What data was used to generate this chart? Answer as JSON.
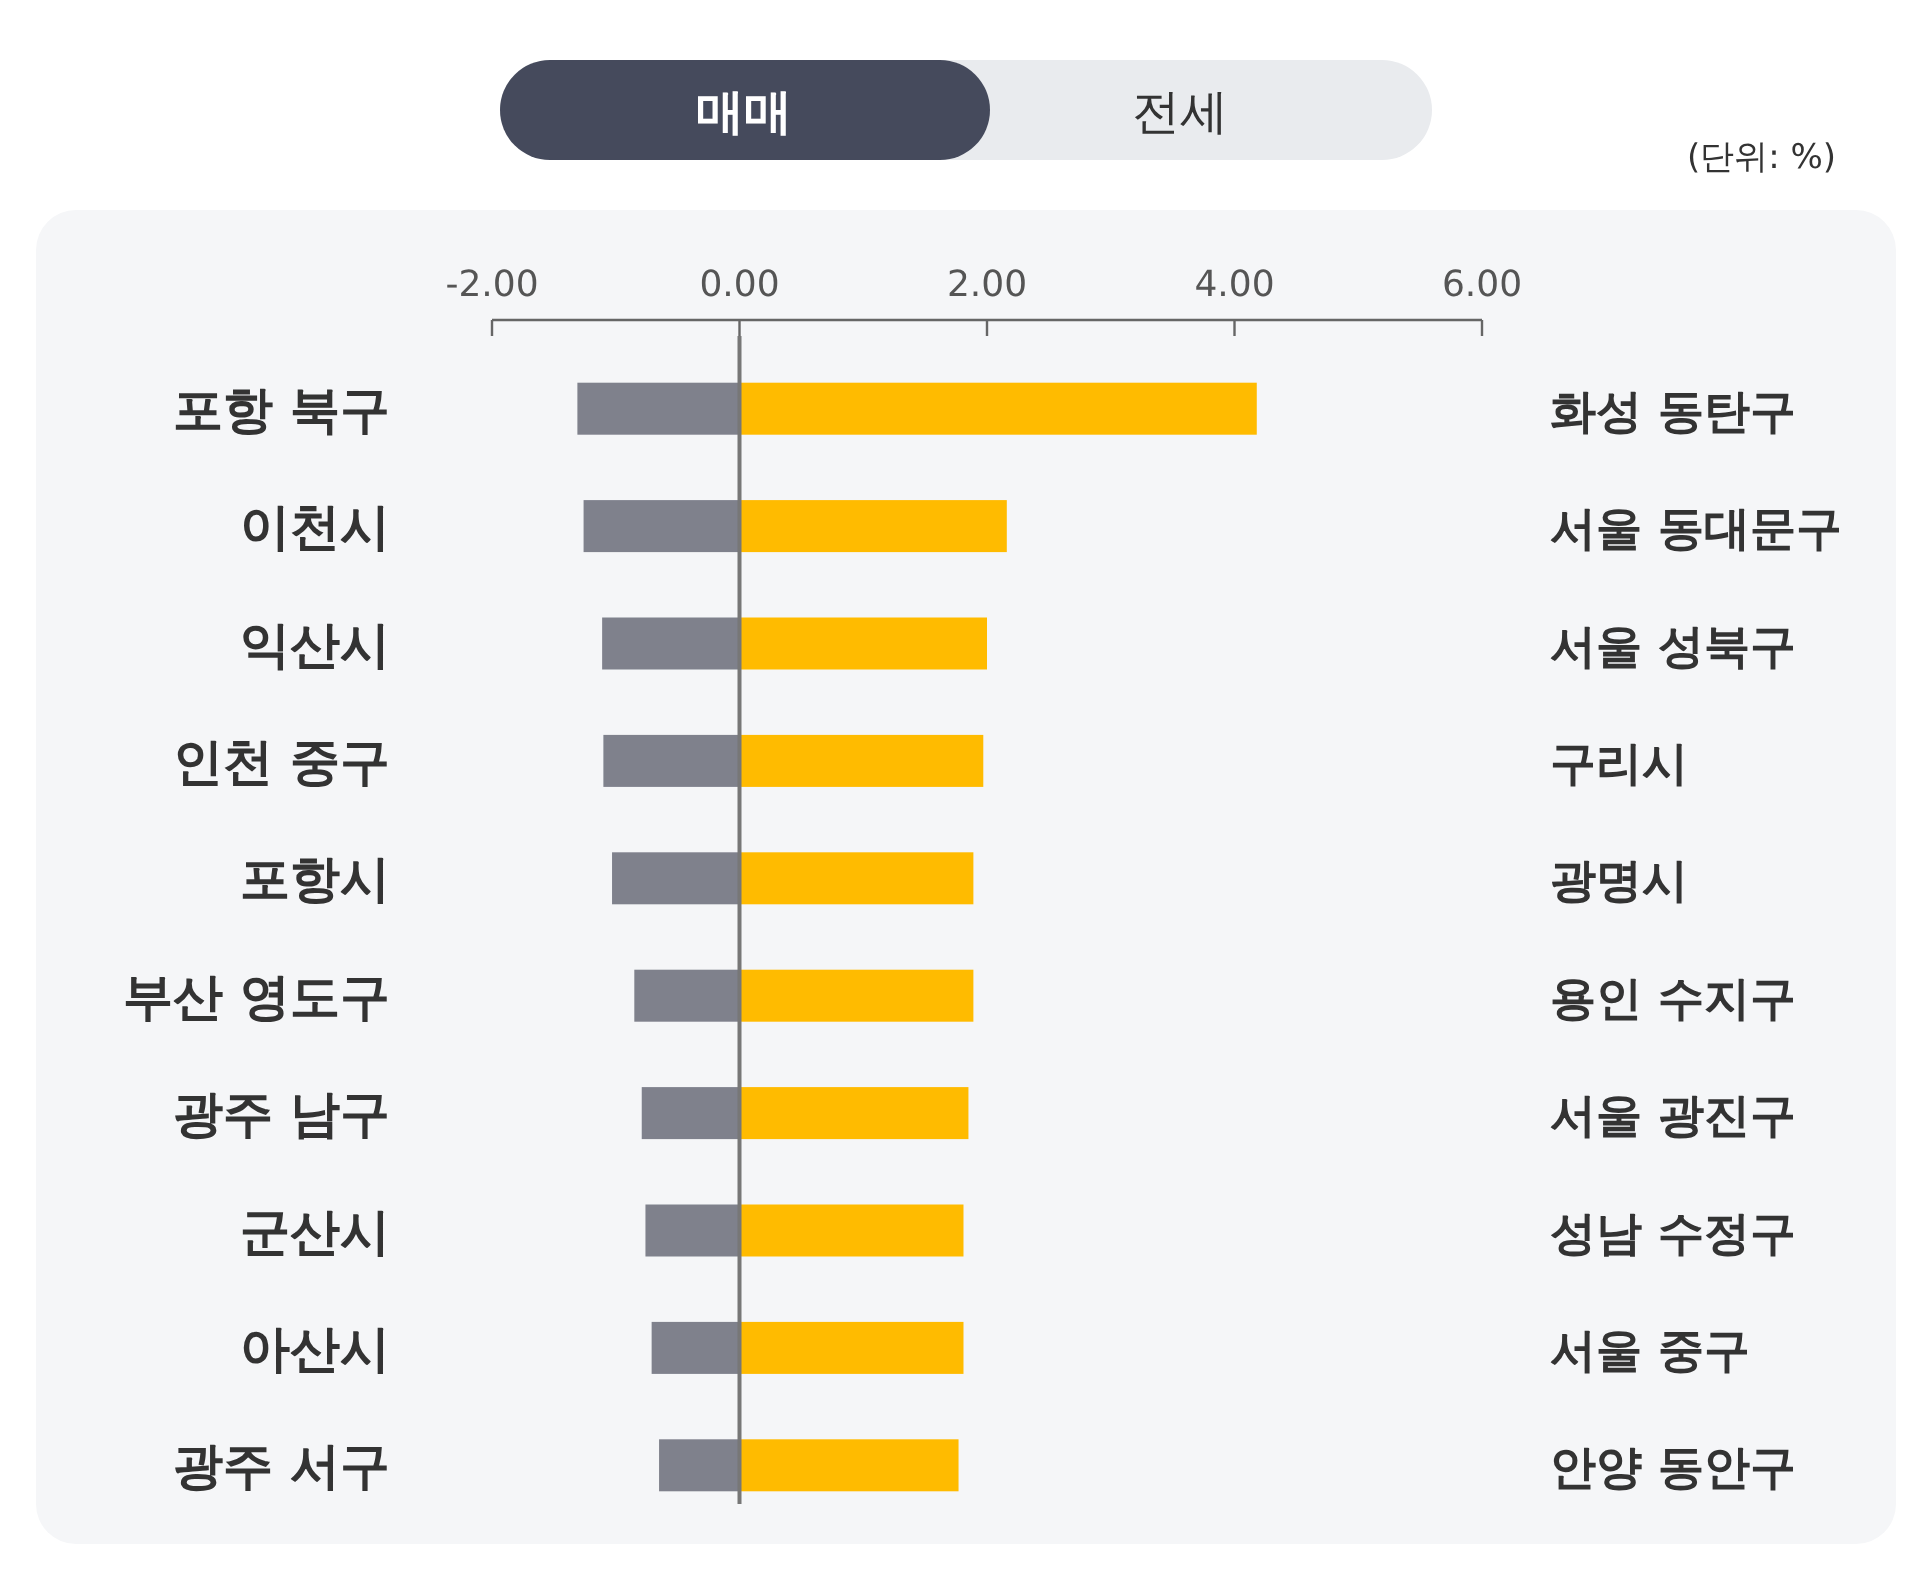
{
  "chart_data": {
    "type": "bar",
    "orientation": "horizontal",
    "categories": [
      "포항 북구",
      "이천시",
      "익산시",
      "인천 중구",
      "포항시",
      "부산 영도구",
      "광주 남구",
      "군산시",
      "아산시",
      "광주 서구"
    ],
    "y2_categories": [
      "화성 동탄구",
      "서울 동대문구",
      "서울 성북구",
      "구리시",
      "광명시",
      "용인 수지구",
      "서울 광진구",
      "성남 수정구",
      "서울 중구",
      "안양 동안구"
    ],
    "series": [
      {
        "color": "#7f818c",
        "values": [
          -1.31,
          -1.26,
          -1.11,
          -1.1,
          -1.03,
          -0.85,
          -0.79,
          -0.76,
          -0.71,
          -0.65
        ]
      },
      {
        "color": "#ffbb00",
        "values": [
          4.18,
          2.16,
          2.0,
          1.97,
          1.89,
          1.89,
          1.85,
          1.81,
          1.81,
          1.77
        ]
      }
    ],
    "xlim": [
      -2,
      6
    ],
    "xticks": [
      {
        "value": -2,
        "label": "-2.00"
      },
      {
        "value": 0,
        "label": "0.00"
      },
      {
        "value": 2,
        "label": "2.00"
      },
      {
        "value": 4,
        "label": "4.00"
      },
      {
        "value": 6,
        "label": "6.00"
      }
    ],
    "ref_lines": [
      {
        "axis": "x",
        "value": 0,
        "color": "#777777"
      }
    ],
    "stacked": true,
    "annotations": [
      "매매",
      "전세",
      "(단위: %)"
    ]
  }
}
